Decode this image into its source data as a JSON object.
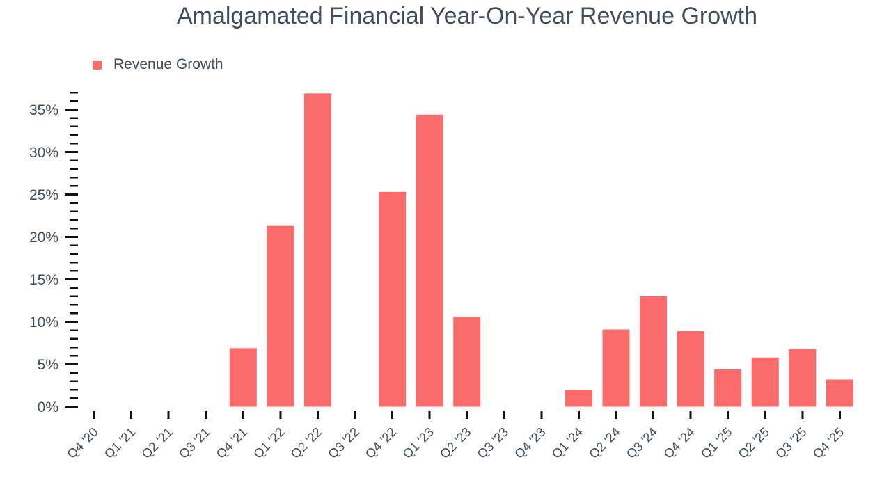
{
  "colors": {
    "bar": "#fc6b6b",
    "text": "#414e5f",
    "tick": "#111111",
    "background": "#ffffff"
  },
  "legend": {
    "label": "Revenue Growth",
    "position": "top-left",
    "swatch_color": "#fc6b6b"
  },
  "chart_data": {
    "type": "bar",
    "title": "Amalgamated Financial Year-On-Year Revenue Growth",
    "xlabel": "",
    "ylabel": "",
    "unit": "%",
    "grid": false,
    "legend_label": "Revenue Growth",
    "legend_position": "top-left",
    "ylim": [
      0,
      37
    ],
    "y_major_step": 5,
    "y_minor_step": 1,
    "y_tick_labels": [
      "0%",
      "5%",
      "10%",
      "15%",
      "20%",
      "25%",
      "30%",
      "35%"
    ],
    "categories": [
      "Q4 '20",
      "Q1 '21",
      "Q2 '21",
      "Q3 '21",
      "Q4 '21",
      "Q1 '22",
      "Q2 '22",
      "Q3 '22",
      "Q4 '22",
      "Q1 '23",
      "Q2 '23",
      "Q3 '23",
      "Q4 '23",
      "Q1 '24",
      "Q2 '24",
      "Q3 '24",
      "Q4 '24",
      "Q1 '25",
      "Q2 '25",
      "Q3 '25",
      "Q4 '25"
    ],
    "values": [
      null,
      null,
      null,
      null,
      6.9,
      21.3,
      36.9,
      null,
      25.3,
      34.4,
      10.6,
      null,
      null,
      2.0,
      9.1,
      13.0,
      8.9,
      4.4,
      5.8,
      6.8,
      3.2
    ]
  }
}
